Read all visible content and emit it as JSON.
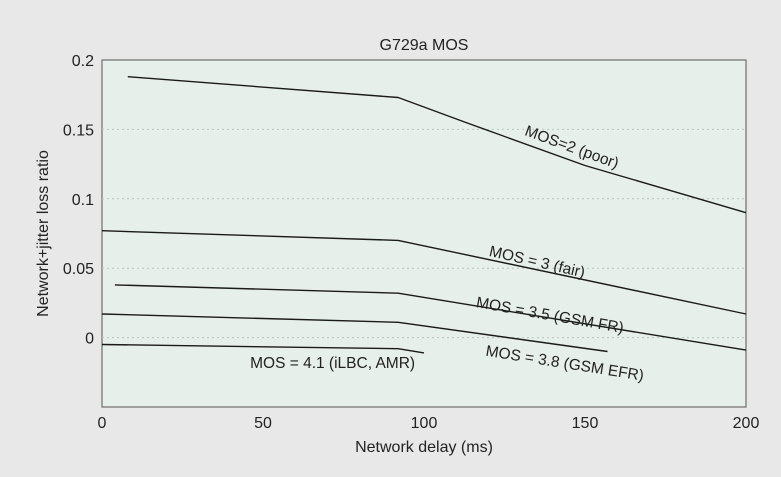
{
  "chart_data": {
    "type": "line",
    "title": "G729a MOS",
    "xlabel": "Network delay (ms)",
    "ylabel": "Network+jitter loss ratio",
    "xlim": [
      0,
      200
    ],
    "ylim": [
      -0.05,
      0.2
    ],
    "x_ticks": [
      "0",
      "50",
      "100",
      "150",
      "200"
    ],
    "x_tick_values": [
      0,
      50,
      100,
      150,
      200
    ],
    "y_ticks": [
      "0.2",
      "0.15",
      "0.1",
      "0.05",
      "0"
    ],
    "y_tick_values": [
      0.2,
      0.15,
      0.1,
      0.05,
      0
    ],
    "grid": "horizontal-dotted",
    "colors": {
      "plot_bg": "#e6efe9",
      "frame_bg": "#e8e8e8",
      "line": "#1a1a1a",
      "grid": "#b9c7be"
    },
    "series": [
      {
        "label": "MOS=2 (poor)",
        "x": [
          8,
          92,
          113,
          150,
          200
        ],
        "y": [
          0.188,
          0.173,
          0.155,
          0.124,
          0.09
        ],
        "label_x": 131,
        "label_y": 0.146,
        "label_angle": 20
      },
      {
        "label": "MOS = 3 (fair)",
        "x": [
          0,
          92,
          200
        ],
        "y": [
          0.077,
          0.07,
          0.017
        ],
        "label_x": 120,
        "label_y": 0.059,
        "label_angle": 13
      },
      {
        "label": "MOS = 3.5 (GSM FR)",
        "x": [
          4,
          92,
          200
        ],
        "y": [
          0.038,
          0.032,
          -0.009
        ],
        "label_x": 116,
        "label_y": 0.022,
        "label_angle": 10
      },
      {
        "label": "MOS = 3.8 (GSM EFR)",
        "x": [
          0,
          92,
          157
        ],
        "y": [
          0.017,
          0.011,
          -0.01
        ],
        "label_x": 119,
        "label_y": -0.013,
        "label_angle": 9
      },
      {
        "label": "MOS = 4.1 (iLBC, AMR)",
        "x": [
          0,
          92,
          100
        ],
        "y": [
          -0.005,
          -0.008,
          -0.011
        ],
        "label_x": 46,
        "label_y": -0.022,
        "label_angle": 0
      }
    ]
  }
}
